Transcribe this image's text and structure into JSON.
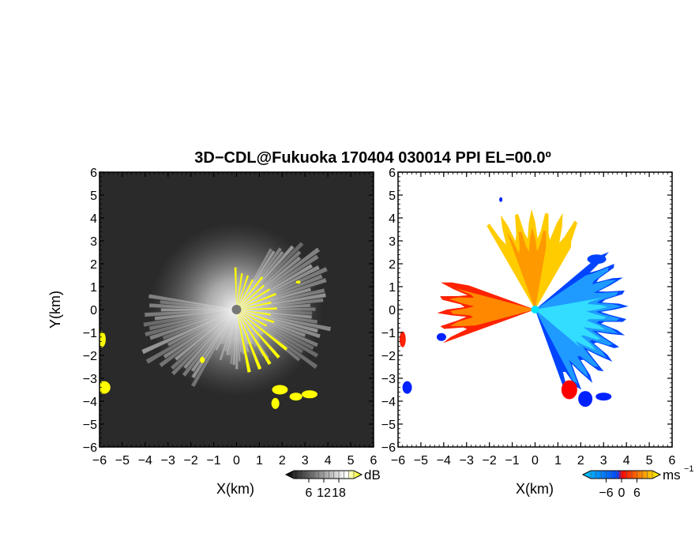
{
  "chart_data": [
    {
      "type": "heatmap",
      "title": "3D−CDL@Fukuoka 170404 030014 PPI EL=00.0º",
      "panel": "left",
      "quantity": "SNR",
      "xlabel": "X(km)",
      "ylabel": "Y(km)",
      "xlim": [
        -6,
        6
      ],
      "ylim": [
        -6,
        6
      ],
      "xticks": [
        "−6",
        "−5",
        "−4",
        "−3",
        "−2",
        "−1",
        "0",
        "1",
        "2",
        "3",
        "4",
        "5",
        "6"
      ],
      "yticks": [
        "−6",
        "−5",
        "−4",
        "−3",
        "−2",
        "−1",
        "0",
        "1",
        "2",
        "3",
        "4",
        "5",
        "6"
      ],
      "colorbar": {
        "ticks": [
          "6",
          "12",
          "18"
        ],
        "unit": "dB",
        "colors": [
          "#000000",
          "#ffffff",
          "#ffff00"
        ]
      },
      "background": "#2a2a2a"
    },
    {
      "type": "heatmap",
      "panel": "right",
      "quantity": "radial velocity",
      "xlabel": "X(km)",
      "xlim": [
        -6,
        6
      ],
      "ylim": [
        -6,
        6
      ],
      "xticks": [
        "−6",
        "−5",
        "−4",
        "−3",
        "−2",
        "−1",
        "0",
        "1",
        "2",
        "3",
        "4",
        "5",
        "6"
      ],
      "yticks": [
        "−6",
        "−5",
        "−4",
        "−3",
        "−2",
        "−1",
        "0",
        "1",
        "2",
        "3",
        "4",
        "5",
        "6"
      ],
      "colorbar": {
        "ticks": [
          "−6",
          "0",
          "6"
        ],
        "unit": "ms",
        "unit_exponent": "−1",
        "colors": [
          "#00ccff",
          "#0044ff",
          "#ff0000",
          "#ff8800",
          "#ffff00"
        ]
      },
      "background": "#ffffff"
    }
  ]
}
